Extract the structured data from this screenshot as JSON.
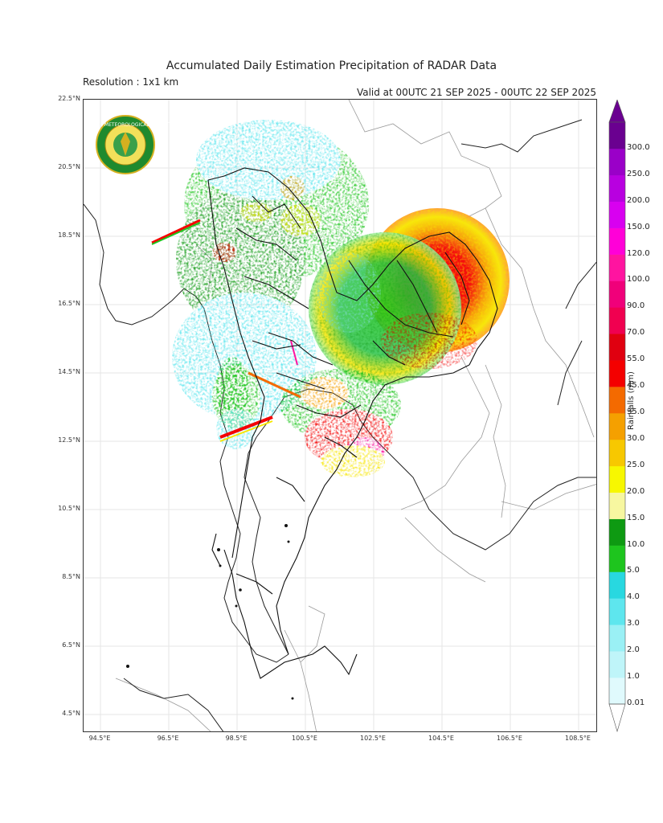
{
  "header": {
    "title": "Accumulated Daily Estimation Precipitation of RADAR Data",
    "resolution": "Resolution : 1x1 km",
    "valid": "Valid at 00UTC 21 SEP 2025 - 00UTC 22 SEP 2025"
  },
  "logo": {
    "name": "Thai Meteorological Department seal",
    "text": "กรมอุตุนิยมวิทยา METEOROLOGICAL DEPARTMENT",
    "colors": {
      "ring": "#1e8a2e",
      "inner": "#f2e05a",
      "border": "#d4b020"
    }
  },
  "axes": {
    "lat_ticks": [
      "22.5°N",
      "20.5°N",
      "18.5°N",
      "16.5°N",
      "14.5°N",
      "12.5°N",
      "10.5°N",
      "8.5°N",
      "6.5°N",
      "4.5°N"
    ],
    "lon_ticks": [
      "94.5°E",
      "96.5°E",
      "98.5°E",
      "100.5°E",
      "102.5°E",
      "104.5°E",
      "106.5°E",
      "108.5°E"
    ],
    "lat_range": [
      4.0,
      22.5
    ],
    "lon_range": [
      94.0,
      109.0
    ]
  },
  "colorbar": {
    "title": "Rainfalls (mm)",
    "labels": [
      "0.01",
      "1.0",
      "2.0",
      "3.0",
      "4.0",
      "5.0",
      "10.0",
      "15.0",
      "20.0",
      "25.0",
      "30.0",
      "35.0",
      "45.0",
      "55.0",
      "70.0",
      "90.0",
      "100.0",
      "120.0",
      "150.0",
      "200.0",
      "250.0",
      "300.0"
    ],
    "colors": [
      "#e0fafd",
      "#bff5f9",
      "#9af0f5",
      "#5ee6ee",
      "#28d8e0",
      "#1ec51e",
      "#0e9a12",
      "#f7f7a0",
      "#f7f700",
      "#f7c800",
      "#f5a000",
      "#f46a00",
      "#f40000",
      "#e00010",
      "#f00050",
      "#f0007a",
      "#ff14a0",
      "#ff00d8",
      "#d800f0",
      "#b800e0",
      "#9a00c8",
      "#6a0090"
    ]
  }
}
